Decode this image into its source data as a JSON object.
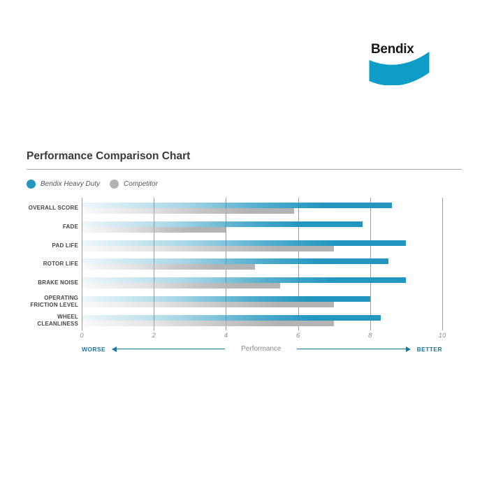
{
  "logo": {
    "text": "Bendix",
    "color": "#0d9dc6"
  },
  "header": {
    "title": "Performance Comparison Chart"
  },
  "legend": {
    "items": [
      {
        "label": "Bendix Heavy Duty",
        "color": "#2296bf"
      },
      {
        "label": "Competitor",
        "color": "#b3b3b3"
      }
    ]
  },
  "chart_data": {
    "type": "bar",
    "orientation": "horizontal",
    "title": "Performance Comparison Chart",
    "categories": [
      "OVERALL SCORE",
      "FADE",
      "PAD LIFE",
      "ROTOR LIFE",
      "BRAKE NOISE",
      "OPERATING FRICTION LEVEL",
      "WHEEL CLEANLINESS"
    ],
    "series": [
      {
        "name": "Bendix Heavy Duty",
        "color": "#2296bf",
        "values": [
          8.6,
          7.8,
          9.0,
          8.5,
          9.0,
          8.0,
          8.3
        ]
      },
      {
        "name": "Competitor",
        "color": "#b3b3b3",
        "values": [
          5.9,
          4.0,
          7.0,
          4.8,
          5.5,
          7.0,
          7.0
        ]
      }
    ],
    "xlim": [
      0,
      10
    ],
    "xticks": [
      "0",
      "2",
      "4",
      "6",
      "8",
      "10"
    ],
    "xlabel": "Performance",
    "grid": true,
    "legend_position": "top-left",
    "bar_style": "gradient fading from transparent at left to solid at right"
  },
  "axis_note": {
    "worse": "WORSE",
    "center": "Performance",
    "better": "BETTER",
    "arrow_color": "#1878a5"
  }
}
